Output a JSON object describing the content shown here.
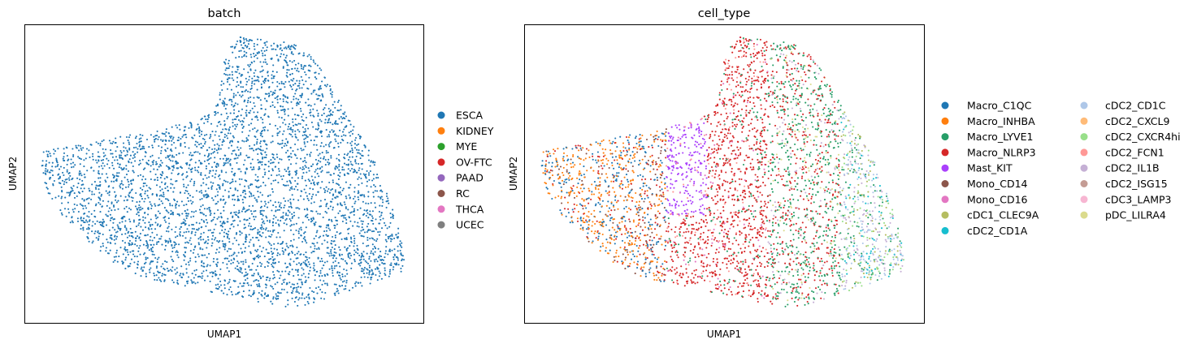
{
  "chart_data": [
    {
      "type": "scatter",
      "title": "batch",
      "xlabel": "UMAP1",
      "ylabel": "UMAP2",
      "ticks": "none",
      "grid": false,
      "legend_placement": "right",
      "legend": [
        {
          "label": "ESCA",
          "color": "#1f77b4"
        },
        {
          "label": "KIDNEY",
          "color": "#ff7f0e"
        },
        {
          "label": "MYE",
          "color": "#2ca02c"
        },
        {
          "label": "OV-FTC",
          "color": "#d62728"
        },
        {
          "label": "PAAD",
          "color": "#9467bd"
        },
        {
          "label": "RC",
          "color": "#8c564b"
        },
        {
          "label": "THCA",
          "color": "#e377c2"
        },
        {
          "label": "UCEC",
          "color": "#7f7f7f"
        }
      ]
    },
    {
      "type": "scatter",
      "title": "cell_type",
      "xlabel": "UMAP1",
      "ylabel": "UMAP2",
      "ticks": "none",
      "grid": false,
      "legend_placement": "right",
      "legend": [
        {
          "label": "Macro_C1QC",
          "color": "#1f77b4"
        },
        {
          "label": "Macro_INHBA",
          "color": "#ff7f0e"
        },
        {
          "label": "Macro_LYVE1",
          "color": "#279e68"
        },
        {
          "label": "Macro_NLRP3",
          "color": "#d62728"
        },
        {
          "label": "Mast_KIT",
          "color": "#aa40fc"
        },
        {
          "label": "Mono_CD14",
          "color": "#8c564b"
        },
        {
          "label": "Mono_CD16",
          "color": "#e377c2"
        },
        {
          "label": "cDC1_CLEC9A",
          "color": "#b5bd61"
        },
        {
          "label": "cDC2_CD1A",
          "color": "#17becf"
        },
        {
          "label": "cDC2_CD1C",
          "color": "#aec7e8"
        },
        {
          "label": "cDC2_CXCL9",
          "color": "#ffbb78"
        },
        {
          "label": "cDC2_CXCR4hi",
          "color": "#98df8a"
        },
        {
          "label": "cDC2_FCN1",
          "color": "#ff9896"
        },
        {
          "label": "cDC2_IL1B",
          "color": "#c5b0d5"
        },
        {
          "label": "cDC2_ISG15",
          "color": "#c49c94"
        },
        {
          "label": "cDC3_LAMP3",
          "color": "#f7b6d2"
        },
        {
          "label": "pDC_LILRA4",
          "color": "#dbdb8d"
        }
      ]
    }
  ]
}
